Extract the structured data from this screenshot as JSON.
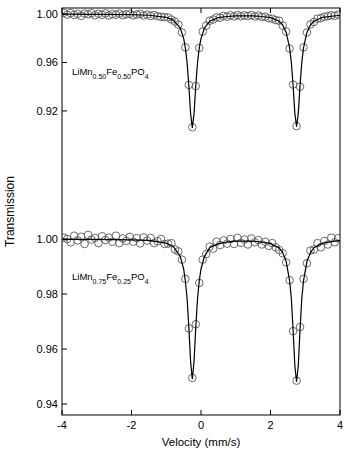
{
  "chart_data": [
    {
      "type": "scatter",
      "annotation": "LiMn0.50Fe0.50PO4",
      "y_label": "Transmission",
      "xlim": [
        -4,
        4
      ],
      "xticks": [
        -4,
        -2,
        0,
        2,
        4
      ],
      "ylim": [
        0.896,
        1.005
      ],
      "yticks": [
        {
          "value": 1.0,
          "label": "1.00"
        },
        {
          "value": 0.96,
          "label": "0.96"
        },
        {
          "value": 0.92,
          "label": "0.92"
        }
      ],
      "tick_labels": "y",
      "series": [
        {
          "type": "scatter",
          "marker": "circle",
          "color": "#5a5a5a",
          "x": [
            -3.95,
            -3.85,
            -3.75,
            -3.65,
            -3.55,
            -3.45,
            -3.35,
            -3.25,
            -3.15,
            -3.05,
            -2.95,
            -2.85,
            -2.75,
            -2.65,
            -2.55,
            -2.45,
            -2.35,
            -2.25,
            -2.15,
            -2.05,
            -1.95,
            -1.85,
            -1.75,
            -1.65,
            -1.55,
            -1.45,
            -1.35,
            -1.25,
            -1.15,
            -1.05,
            -0.95,
            -0.85,
            -0.75,
            -0.65,
            -0.55,
            -0.45,
            -0.35,
            -0.25,
            -0.15,
            -0.05,
            0.05,
            0.15,
            0.25,
            0.35,
            0.45,
            0.55,
            0.65,
            0.75,
            0.85,
            0.95,
            1.05,
            1.15,
            1.25,
            1.35,
            1.45,
            1.55,
            1.65,
            1.75,
            1.85,
            1.95,
            2.05,
            2.15,
            2.25,
            2.35,
            2.45,
            2.55,
            2.65,
            2.75,
            2.85,
            2.95,
            3.05,
            3.15,
            3.25,
            3.35,
            3.45,
            3.55,
            3.65,
            3.75,
            3.85,
            3.95
          ],
          "values": [
            1.001,
            0.9995,
            1.0008,
            0.9992,
            1.0002,
            0.9985,
            1.0005,
            0.9998,
            1.0008,
            0.999,
            1.0003,
            0.9993,
            1.0006,
            0.9988,
            1.0,
            0.9994,
            1.0004,
            0.999,
            0.9998,
            1.0002,
            0.9989,
            0.9996,
            1.0001,
            0.9988,
            0.9995,
            0.9984,
            0.9993,
            0.9982,
            0.9978,
            0.9975,
            0.9972,
            0.9955,
            0.9938,
            0.9912,
            0.9848,
            0.9725,
            0.9415,
            0.9065,
            0.9405,
            0.972,
            0.9855,
            0.9905,
            0.9945,
            0.9955,
            0.9972,
            0.997,
            0.9985,
            0.9978,
            0.999,
            0.998,
            0.9992,
            0.9982,
            0.999,
            0.9984,
            0.9992,
            0.998,
            0.9988,
            0.9976,
            0.9978,
            0.9965,
            0.9962,
            0.995,
            0.9945,
            0.9905,
            0.9855,
            0.9715,
            0.9418,
            0.9075,
            0.94,
            0.9725,
            0.9848,
            0.9915,
            0.9935,
            0.9962,
            0.9966,
            0.9978,
            0.9982,
            0.999,
            0.9985,
            0.9995
          ]
        },
        {
          "type": "line",
          "line_style": "solid",
          "color": "#000000",
          "x": [
            -4,
            -3,
            -2,
            -1.5,
            -1,
            -0.8,
            -0.6,
            -0.5,
            -0.45,
            -0.4,
            -0.35,
            -0.3,
            -0.25,
            -0.2,
            -0.15,
            -0.1,
            -0.05,
            0,
            0.1,
            0.25,
            0.5,
            0.75,
            1,
            1.25,
            1.5,
            1.75,
            2,
            2.25,
            2.35,
            2.45,
            2.55,
            2.6,
            2.65,
            2.7,
            2.75,
            2.8,
            2.85,
            2.9,
            2.95,
            3.05,
            3.15,
            3.25,
            3.5,
            4
          ],
          "values": [
            0.9999,
            0.9998,
            0.9995,
            0.999,
            0.9973,
            0.995,
            0.9886,
            0.98,
            0.972,
            0.96,
            0.941,
            0.918,
            0.906,
            0.918,
            0.941,
            0.96,
            0.972,
            0.98,
            0.9885,
            0.994,
            0.997,
            0.998,
            0.9985,
            0.9986,
            0.9985,
            0.998,
            0.997,
            0.994,
            0.991,
            0.985,
            0.972,
            0.96,
            0.941,
            0.918,
            0.907,
            0.918,
            0.941,
            0.96,
            0.972,
            0.985,
            0.991,
            0.994,
            0.9973,
            0.999
          ]
        }
      ]
    },
    {
      "type": "scatter",
      "annotation": "LiMn0.75Fe0.25PO4",
      "x_label": "Velocity (mm/s)",
      "xlim": [
        -4,
        4
      ],
      "xticks": [
        -4,
        -2,
        0,
        2,
        4
      ],
      "ylim": [
        0.936,
        1.036
      ],
      "yticks": [
        {
          "value": 1.0,
          "label": "1.00"
        },
        {
          "value": 0.98,
          "label": "0.98"
        },
        {
          "value": 0.96,
          "label": "0.96"
        },
        {
          "value": 0.94,
          "label": "0.94"
        }
      ],
      "tick_labels": true,
      "series": [
        {
          "type": "scatter",
          "marker": "circle",
          "color": "#5a5a5a",
          "x": [
            -3.95,
            -3.85,
            -3.75,
            -3.65,
            -3.55,
            -3.45,
            -3.35,
            -3.25,
            -3.15,
            -3.05,
            -2.95,
            -2.85,
            -2.75,
            -2.65,
            -2.55,
            -2.45,
            -2.35,
            -2.25,
            -2.15,
            -2.05,
            -1.95,
            -1.85,
            -1.75,
            -1.65,
            -1.55,
            -1.45,
            -1.35,
            -1.25,
            -1.15,
            -1.05,
            -0.95,
            -0.85,
            -0.75,
            -0.65,
            -0.55,
            -0.45,
            -0.35,
            -0.25,
            -0.15,
            -0.05,
            0.05,
            0.15,
            0.25,
            0.35,
            0.45,
            0.55,
            0.65,
            0.75,
            0.85,
            0.95,
            1.05,
            1.15,
            1.25,
            1.35,
            1.45,
            1.55,
            1.65,
            1.75,
            1.85,
            1.95,
            2.05,
            2.15,
            2.25,
            2.35,
            2.45,
            2.55,
            2.65,
            2.75,
            2.85,
            2.95,
            3.05,
            3.15,
            3.25,
            3.35,
            3.45,
            3.55,
            3.65,
            3.75,
            3.85,
            3.95
          ],
          "values": [
            1.0005,
            1.0,
            0.9988,
            1.0012,
            0.9995,
            1.0008,
            0.9982,
            1.0015,
            0.9998,
            1.0004,
            0.9985,
            1.001,
            0.9996,
            1.0005,
            0.999,
            1.0012,
            0.9985,
            1.0002,
            0.9993,
            1.0008,
            0.999,
            1.0003,
            0.9984,
            1.0006,
            0.9994,
            1.0004,
            0.9985,
            0.9992,
            1.0,
            0.9982,
            0.9983,
            0.9985,
            0.9962,
            0.9955,
            0.9925,
            0.9855,
            0.9675,
            0.9495,
            0.969,
            0.984,
            0.9925,
            0.9945,
            0.9972,
            0.9965,
            0.999,
            0.9978,
            0.9995,
            0.9983,
            1.0,
            0.9982,
            1.0004,
            0.9986,
            0.9998,
            0.998,
            1.0002,
            0.9988,
            0.9996,
            0.998,
            0.999,
            0.9975,
            0.9985,
            0.997,
            0.996,
            0.9948,
            0.9915,
            0.985,
            0.9665,
            0.9485,
            0.968,
            0.9855,
            0.9912,
            0.9958,
            0.9962,
            0.9985,
            0.997,
            0.9993,
            0.998,
            1.0005,
            0.9988,
            1.0003
          ]
        },
        {
          "type": "line",
          "line_style": "solid",
          "color": "#000000",
          "x": [
            -4,
            -3,
            -2,
            -1.5,
            -1,
            -0.8,
            -0.6,
            -0.5,
            -0.45,
            -0.4,
            -0.35,
            -0.3,
            -0.25,
            -0.2,
            -0.15,
            -0.1,
            -0.05,
            0,
            0.1,
            0.25,
            0.5,
            0.75,
            1,
            1.25,
            1.5,
            1.75,
            2,
            2.25,
            2.35,
            2.45,
            2.55,
            2.6,
            2.65,
            2.7,
            2.75,
            2.8,
            2.85,
            2.9,
            2.95,
            3.05,
            3.15,
            3.25,
            3.5,
            4
          ],
          "values": [
            0.9999,
            0.9999,
            0.9997,
            0.9995,
            0.9985,
            0.9973,
            0.9938,
            0.9891,
            0.9848,
            0.9783,
            0.968,
            0.9555,
            0.949,
            0.9555,
            0.968,
            0.9783,
            0.9848,
            0.9891,
            0.9937,
            0.9968,
            0.9983,
            0.9989,
            0.9992,
            0.9992,
            0.9992,
            0.9989,
            0.9983,
            0.9967,
            0.9951,
            0.9919,
            0.9848,
            0.9783,
            0.967,
            0.954,
            0.948,
            0.954,
            0.967,
            0.9783,
            0.9848,
            0.9919,
            0.9951,
            0.9968,
            0.9985,
            0.9995
          ]
        }
      ]
    }
  ]
}
